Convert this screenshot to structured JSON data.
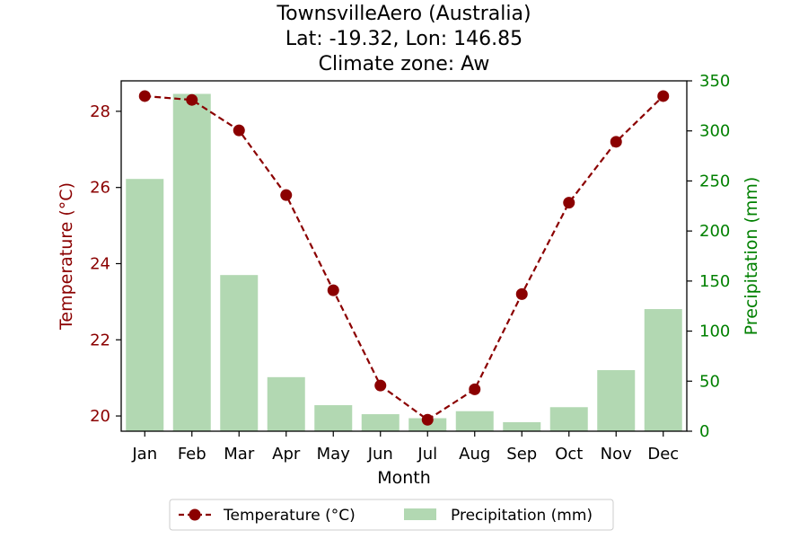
{
  "chart_data": {
    "type": "bar+line",
    "title": [
      "TownsvilleAero (Australia)",
      "Lat: -19.32, Lon: 146.85",
      "Climate zone: Aw"
    ],
    "xlabel": "Month",
    "categories": [
      "Jan",
      "Feb",
      "Mar",
      "Apr",
      "May",
      "Jun",
      "Jul",
      "Aug",
      "Sep",
      "Oct",
      "Nov",
      "Dec"
    ],
    "series": [
      {
        "name": "Temperature (°C)",
        "type": "line",
        "axis": "left",
        "color": "#8b0000",
        "values": [
          28.4,
          28.3,
          27.5,
          25.8,
          23.3,
          20.8,
          19.9,
          20.7,
          23.2,
          25.6,
          27.2,
          28.4
        ]
      },
      {
        "name": "Precipitation (mm)",
        "type": "bar",
        "axis": "right",
        "color": "#b2d8b2",
        "values": [
          252,
          337,
          156,
          54,
          26,
          17,
          13,
          20,
          9,
          24,
          61,
          122
        ]
      }
    ],
    "y_left": {
      "label": "Temperature (°C)",
      "ylim": [
        19.6,
        28.8
      ],
      "ticks": [
        20,
        22,
        24,
        26,
        28
      ],
      "color": "#8b0000"
    },
    "y_right": {
      "label": "Precipitation (mm)",
      "ylim": [
        0,
        350
      ],
      "ticks": [
        0,
        50,
        100,
        150,
        200,
        250,
        300,
        350
      ],
      "color": "#008000"
    },
    "legend_position": "bottom-center",
    "grid": false
  }
}
